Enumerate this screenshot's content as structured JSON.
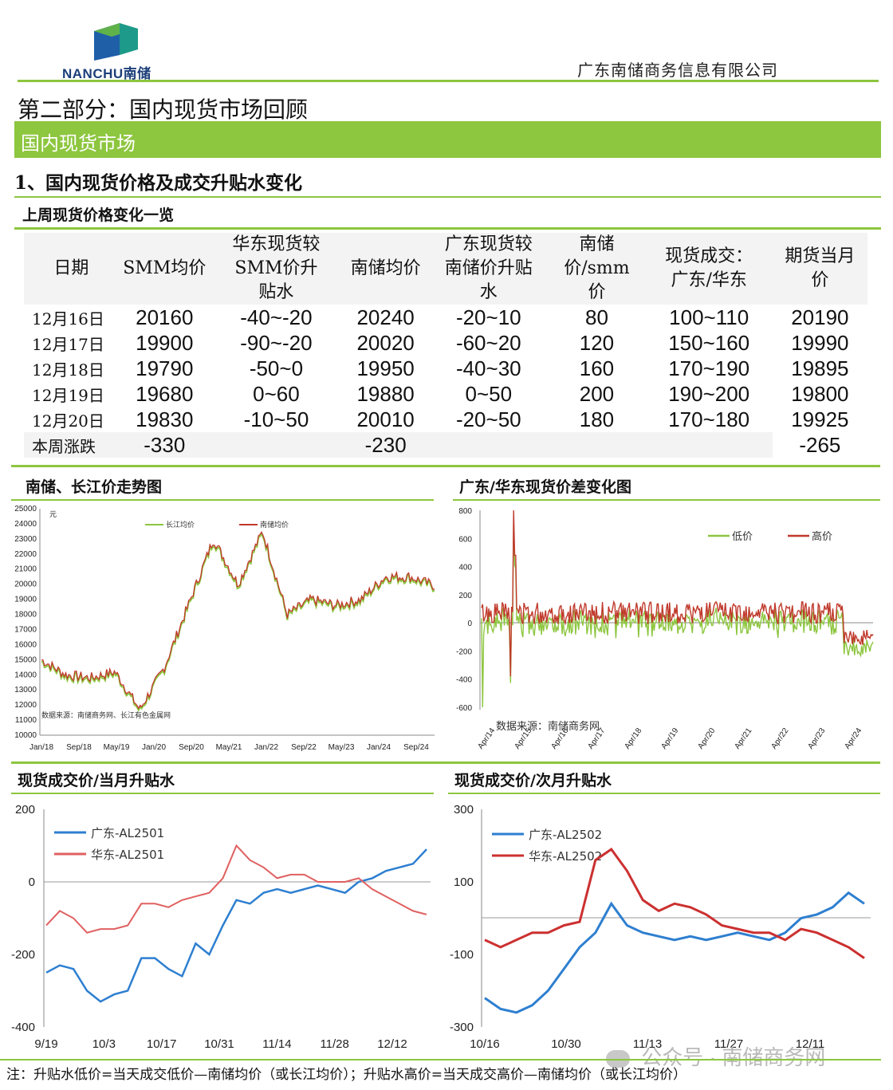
{
  "header": {
    "logo_text": "NANCHU南储",
    "company": "广东南储商务信息有限公司"
  },
  "section": {
    "title": "第二部分：国内现货市场回顾",
    "banner": "国内现货市场",
    "subtitle": "1、国内现货价格及成交升贴水变化",
    "table_caption": "上周现货价格变化一览"
  },
  "table": {
    "headers": [
      "日期",
      "SMM均价",
      "华东现货较SMM价升贴水",
      "南储均价",
      "广东现货较南储价升贴水",
      "南储价/smm价",
      "现货成交：广东/华东",
      "期货当月价"
    ],
    "rows": [
      [
        "12月16日",
        "20160",
        "-40~-20",
        "20240",
        "-20~10",
        "80",
        "100~110",
        "20190"
      ],
      [
        "12月17日",
        "19900",
        "-90~-20",
        "20020",
        "-60~20",
        "120",
        "150~160",
        "19990"
      ],
      [
        "12月18日",
        "19790",
        "-50~0",
        "19950",
        "-40~30",
        "160",
        "170~190",
        "19895"
      ],
      [
        "12月19日",
        "19680",
        "0~60",
        "19880",
        "0~50",
        "200",
        "190~200",
        "19800"
      ],
      [
        "12月20日",
        "19830",
        "-10~50",
        "20010",
        "-20~50",
        "180",
        "170~180",
        "19925"
      ]
    ],
    "summary": {
      "label": "本周涨跌",
      "smm": "-330",
      "nanchu": "-230",
      "futures": "-265"
    }
  },
  "charts": {
    "c1_title": "南储、长江价走势图",
    "c2_title": "广东/华东现货价差变化图",
    "c3_title": "现货成交价/当月升贴水",
    "c4_title": "现货成交价/次月升贴水"
  },
  "chart_data": [
    {
      "type": "line",
      "unit": "元",
      "source": "数据来源：南储商务网、长江有色金属网",
      "x_ticks": [
        "Jan/18",
        "Sep/18",
        "May/19",
        "Jan/20",
        "Sep/20",
        "May/21",
        "Jan/22",
        "Sep/22",
        "May/23",
        "Jan/24",
        "Sep/24"
      ],
      "y_ticks": [
        "25000",
        "24000",
        "23000",
        "22000",
        "21000",
        "20000",
        "19000",
        "18000",
        "17000",
        "16000",
        "15000",
        "14000",
        "13000",
        "12000",
        "11000",
        "10000"
      ],
      "ylim": [
        10000,
        25000
      ],
      "series": [
        {
          "name": "长江均价",
          "color": "#8dc63f"
        },
        {
          "name": "南储均价",
          "color": "#c0392b"
        }
      ],
      "x": [
        "Jan/18",
        "Sep/18",
        "May/19",
        "Jan/20",
        "Apr/20",
        "Sep/20",
        "May/21",
        "Oct/21",
        "Jan/22",
        "Mar/22",
        "Jul/22",
        "Sep/22",
        "May/23",
        "Jan/24",
        "May/24",
        "Sep/24",
        "Dec/24"
      ],
      "values": [
        15000,
        14000,
        13800,
        14200,
        11700,
        14500,
        18700,
        23000,
        20000,
        23500,
        18000,
        19000,
        18600,
        19000,
        20500,
        20500,
        19900
      ]
    },
    {
      "type": "line",
      "source": "数据来源：南储商务网",
      "x_ticks": [
        "Apr/14",
        "Apr/15",
        "Apr/16",
        "Apr/17",
        "Apr/18",
        "Apr/19",
        "Apr/20",
        "Apr/21",
        "Apr/22",
        "Apr/23",
        "Apr/24"
      ],
      "y_ticks": [
        "800",
        "600",
        "400",
        "200",
        "0",
        "-200",
        "-400",
        "-600"
      ],
      "ylim": [
        -600,
        800
      ],
      "series": [
        {
          "name": "低价",
          "color": "#8dc63f"
        },
        {
          "name": "高价",
          "color": "#c0392b"
        }
      ]
    },
    {
      "type": "line",
      "x_ticks": [
        "9/19",
        "10/3",
        "10/17",
        "10/31",
        "11/14",
        "11/28",
        "12/12"
      ],
      "y_ticks": [
        "200",
        "0",
        "-200",
        "-400"
      ],
      "ylim": [
        -400,
        200
      ],
      "series": [
        {
          "name": "广东-AL2501",
          "color": "#2e7fd0",
          "values": [
            -250,
            -230,
            -240,
            -300,
            -330,
            -310,
            -300,
            -210,
            -210,
            -240,
            -260,
            -170,
            -200,
            -120,
            -50,
            -60,
            -30,
            -20,
            -30,
            -20,
            -10,
            -20,
            -30,
            0,
            10,
            30,
            40,
            50,
            90
          ]
        },
        {
          "name": "华东-AL2501",
          "color": "#e06060",
          "values": [
            -120,
            -80,
            -100,
            -140,
            -130,
            -130,
            -120,
            -60,
            -60,
            -70,
            -50,
            -40,
            -30,
            10,
            100,
            60,
            40,
            10,
            20,
            20,
            0,
            0,
            0,
            10,
            -20,
            -40,
            -60,
            -80,
            -90
          ]
        }
      ]
    },
    {
      "type": "line",
      "x_ticks": [
        "10/16",
        "10/30",
        "11/13",
        "11/27",
        "12/11"
      ],
      "y_ticks": [
        "300",
        "100",
        "-100",
        "-300"
      ],
      "ylim": [
        -300,
        300
      ],
      "series": [
        {
          "name": "广东-AL2502",
          "color": "#2e7fd0",
          "values": [
            -220,
            -250,
            -260,
            -240,
            -200,
            -140,
            -80,
            -40,
            40,
            -20,
            -40,
            -50,
            -60,
            -50,
            -60,
            -50,
            -40,
            -50,
            -60,
            -40,
            0,
            10,
            30,
            70,
            40
          ]
        },
        {
          "name": "华东-AL2502",
          "color": "#cc3030",
          "values": [
            -60,
            -80,
            -60,
            -40,
            -40,
            -20,
            -10,
            160,
            190,
            130,
            50,
            20,
            40,
            30,
            10,
            -20,
            -30,
            -40,
            -40,
            -60,
            -30,
            -40,
            -60,
            -80,
            -110
          ]
        }
      ]
    }
  ],
  "footer": {
    "note": "注：升贴水低价=当天成交低价—南储均价（或长江均价）；升贴水高价=当天成交高价—南储均价（或长江均价）",
    "watermark": "公众号 · 南储商务网"
  }
}
